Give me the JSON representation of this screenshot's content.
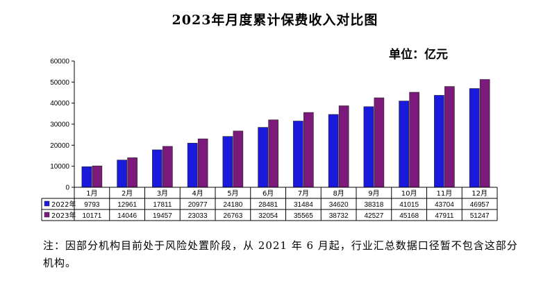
{
  "chart_data": {
    "type": "bar",
    "title": "2023年月度累计保费收入对比图",
    "unit": "单位：亿元",
    "categories": [
      "1月",
      "2月",
      "3月",
      "4月",
      "5月",
      "6月",
      "7月",
      "8月",
      "9月",
      "10月",
      "11月",
      "12月"
    ],
    "series": [
      {
        "name": "2022年",
        "color": "#1a1adc",
        "values": [
          9793,
          12961,
          17811,
          20977,
          24180,
          28481,
          31484,
          34620,
          38318,
          41015,
          43704,
          46957
        ]
      },
      {
        "name": "2023年",
        "color": "#7b1a7b",
        "values": [
          10171,
          14046,
          19457,
          23033,
          26763,
          32054,
          35565,
          38732,
          42527,
          45168,
          47911,
          51247
        ]
      }
    ],
    "ylim": [
      0,
      60000
    ],
    "yticks": [
      "0",
      "10000",
      "20000",
      "30000",
      "40000",
      "50000",
      "60000"
    ],
    "table": {
      "rows": [
        [
          "9793",
          "12961",
          "17811",
          "20977",
          "24180",
          "28481",
          "31484",
          "34620",
          "38318",
          "41015",
          "43704",
          "46957"
        ],
        [
          "10171",
          "14046",
          "19457",
          "23033",
          "26763",
          "32054",
          "35565",
          "38732",
          "42527",
          "45168",
          "47911",
          "51247"
        ]
      ]
    }
  },
  "note": "注：因部分机构目前处于风险处置阶段，从 2021 年 6 月起，行业汇总数据口径暂不包含这部分机构。"
}
